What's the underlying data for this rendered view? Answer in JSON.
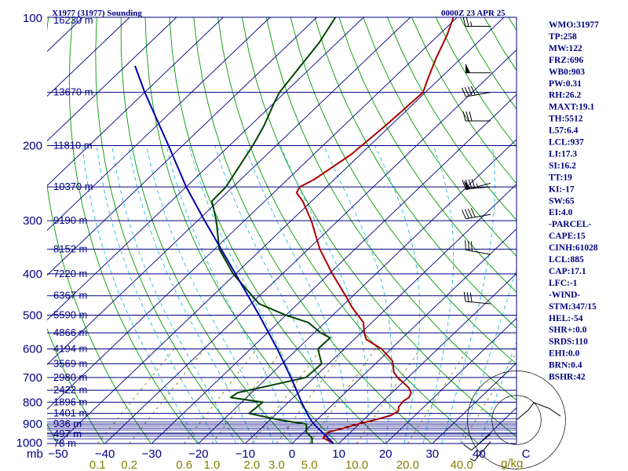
{
  "header": {
    "station": "X1977 (31977) Sounding",
    "valid_time": "0000Z 23 APR 25"
  },
  "indices": [
    "WMO:31977",
    "TP:258",
    "MW:122",
    "FRZ:696",
    "WB0:903",
    "PW:0.31",
    "RH:26.2",
    "MAXT:19.1",
    "TH:5512",
    "L57:6.4",
    "LCL:937",
    "LI:17.3",
    "SI:16.2",
    "TT:19",
    "KI:-17",
    "SW:65",
    "EI:4.0",
    "-PARCEL-",
    "CAPE:15",
    "CINH:61028",
    "LCL:885",
    "CAP:17.1",
    "LFC:-1",
    "-WIND-",
    "STM:347/15",
    "HEL:-54",
    "SHR+:0.0",
    "SRDS:110",
    "EHI:0.0",
    "BRN:0.4",
    "BSHR:42"
  ],
  "colors": {
    "frame": "#000080",
    "isobar": "#000080",
    "isotherm": "#000080",
    "dry_adiabat": "#009900",
    "moist_adiabat": "#22bbdd",
    "mixing_ratio": "#808000",
    "temperature": "#aa0000",
    "dewpoint": "#004400",
    "parcel": "#0000aa",
    "barbs": "#000000"
  },
  "chart_data": {
    "type": "skew-t",
    "xlabel": "",
    "ylabel": "mb",
    "pressure_unit": "mb",
    "mixing_ratio_unit": "g/kg",
    "plim": [
      1000,
      100
    ],
    "tlim": [
      -50,
      50
    ],
    "skew_deg_per_100mb": 9.3,
    "pressure_levels": [
      {
        "p": 100,
        "label": "100",
        "height": "16230 m"
      },
      {
        "p": 150,
        "label": "",
        "height": "13670 m"
      },
      {
        "p": 200,
        "label": "200",
        "height": "11810 m"
      },
      {
        "p": 250,
        "label": "",
        "height": "10370 m"
      },
      {
        "p": 300,
        "label": "300",
        "height": "9190 m"
      },
      {
        "p": 350,
        "label": "",
        "height": "8152 m"
      },
      {
        "p": 400,
        "label": "400",
        "height": "7220 m"
      },
      {
        "p": 450,
        "label": "",
        "height": "6367 m"
      },
      {
        "p": 500,
        "label": "500",
        "height": "5590 m"
      },
      {
        "p": 550,
        "label": "",
        "height": "4866 m"
      },
      {
        "p": 600,
        "label": "600",
        "height": "4194 m"
      },
      {
        "p": 650,
        "label": "",
        "height": "3569 m"
      },
      {
        "p": 700,
        "label": "700",
        "height": "2980 m"
      },
      {
        "p": 750,
        "label": "",
        "height": "2422 m"
      },
      {
        "p": 800,
        "label": "800",
        "height": "1896 m"
      },
      {
        "p": 850,
        "label": "",
        "height": "1401 m"
      },
      {
        "p": 900,
        "label": "900",
        "height": "936 m"
      },
      {
        "p": 950,
        "label": "",
        "height": "497 m"
      },
      {
        "p": 1000,
        "label": "1000",
        "height": "78 m"
      }
    ],
    "temp_ticks": [
      {
        "t": -50,
        "label": "−50"
      },
      {
        "t": -40,
        "label": "−40"
      },
      {
        "t": -30,
        "label": "−30"
      },
      {
        "t": -20,
        "label": "−20"
      },
      {
        "t": -10,
        "label": "−10"
      },
      {
        "t": 0,
        "label": "0"
      },
      {
        "t": 10,
        "label": "10"
      },
      {
        "t": 20,
        "label": "20"
      },
      {
        "t": 30,
        "label": "30"
      },
      {
        "t": 40,
        "label": "40"
      },
      {
        "t": 50,
        "label": "C"
      }
    ],
    "mixing_ratio_ticks": [
      {
        "w": 0.1,
        "label": "0.1"
      },
      {
        "w": 0.2,
        "label": "0.2"
      },
      {
        "w": 0.6,
        "label": "0.6"
      },
      {
        "w": 1.0,
        "label": "1.0"
      },
      {
        "w": 2.0,
        "label": "2.0"
      },
      {
        "w": 3.0,
        "label": "3.0"
      },
      {
        "w": 5.0,
        "label": "5.0"
      },
      {
        "w": 10.0,
        "label": "10.0"
      },
      {
        "w": 20.0,
        "label": "20.0"
      },
      {
        "w": 40.0,
        "label": "40.0"
      }
    ],
    "series": [
      {
        "name": "Temperature",
        "points": [
          {
            "p": 1000,
            "t": 8.9
          },
          {
            "p": 990,
            "t": 7.8
          },
          {
            "p": 980,
            "t": 6.6
          },
          {
            "p": 970,
            "t": 5.4
          },
          {
            "p": 955,
            "t": 5.5
          },
          {
            "p": 940,
            "t": 5.2
          },
          {
            "p": 920,
            "t": 7.6
          },
          {
            "p": 905,
            "t": 9.1
          },
          {
            "p": 880,
            "t": 12.4
          },
          {
            "p": 860,
            "t": 14.8
          },
          {
            "p": 840,
            "t": 15.5
          },
          {
            "p": 820,
            "t": 14.6
          },
          {
            "p": 795,
            "t": 14.3
          },
          {
            "p": 780,
            "t": 14.7
          },
          {
            "p": 760,
            "t": 14.1
          },
          {
            "p": 740,
            "t": 12.5
          },
          {
            "p": 720,
            "t": 10.2
          },
          {
            "p": 700,
            "t": 7.8
          },
          {
            "p": 680,
            "t": 5.8
          },
          {
            "p": 640,
            "t": 3.0
          },
          {
            "p": 600,
            "t": -2.0
          },
          {
            "p": 570,
            "t": -7.4
          },
          {
            "p": 550,
            "t": -9.3
          },
          {
            "p": 520,
            "t": -11.8
          },
          {
            "p": 480,
            "t": -17.5
          },
          {
            "p": 450,
            "t": -21.6
          },
          {
            "p": 400,
            "t": -29.3
          },
          {
            "p": 350,
            "t": -37.5
          },
          {
            "p": 300,
            "t": -45.7
          },
          {
            "p": 270,
            "t": -51.9
          },
          {
            "p": 258,
            "t": -55.1
          },
          {
            "p": 250,
            "t": -55.7
          },
          {
            "p": 240,
            "t": -54.3
          },
          {
            "p": 210,
            "t": -52.0
          },
          {
            "p": 180,
            "t": -51.1
          },
          {
            "p": 150,
            "t": -50.5
          },
          {
            "p": 140,
            "t": -52.4
          },
          {
            "p": 125,
            "t": -55.3
          },
          {
            "p": 110,
            "t": -58.2
          },
          {
            "p": 100,
            "t": -60.8
          }
        ]
      },
      {
        "name": "Dewpoint",
        "points": [
          {
            "p": 1000,
            "t": 4.3
          },
          {
            "p": 970,
            "t": 3.0
          },
          {
            "p": 940,
            "t": 0.5
          },
          {
            "p": 900,
            "t": -1.3
          },
          {
            "p": 880,
            "t": -8.0
          },
          {
            "p": 850,
            "t": -15.9
          },
          {
            "p": 800,
            "t": -15.5
          },
          {
            "p": 780,
            "t": -23.4
          },
          {
            "p": 760,
            "t": -23.0
          },
          {
            "p": 700,
            "t": -11.8
          },
          {
            "p": 650,
            "t": -11.5
          },
          {
            "p": 600,
            "t": -15.6
          },
          {
            "p": 565,
            "t": -15.5
          },
          {
            "p": 550,
            "t": -18.6
          },
          {
            "p": 520,
            "t": -23.6
          },
          {
            "p": 500,
            "t": -30.0
          },
          {
            "p": 470,
            "t": -38.3
          },
          {
            "p": 400,
            "t": -50.5
          },
          {
            "p": 350,
            "t": -59.0
          },
          {
            "p": 300,
            "t": -66.0
          },
          {
            "p": 270,
            "t": -71.3
          },
          {
            "p": 250,
            "t": -71.5
          },
          {
            "p": 200,
            "t": -75.0
          },
          {
            "p": 180,
            "t": -77.0
          },
          {
            "p": 160,
            "t": -79.8
          },
          {
            "p": 150,
            "t": -81.2
          },
          {
            "p": 130,
            "t": -82.6
          },
          {
            "p": 115,
            "t": -83.8
          },
          {
            "p": 100,
            "t": -86.0
          }
        ]
      },
      {
        "name": "Parcel",
        "points": [
          {
            "p": 1000,
            "t": 8.9
          },
          {
            "p": 950,
            "t": 4.7
          },
          {
            "p": 900,
            "t": 0.3
          },
          {
            "p": 885,
            "t": -0.9
          },
          {
            "p": 850,
            "t": -3.5
          },
          {
            "p": 800,
            "t": -7.2
          },
          {
            "p": 700,
            "t": -15.0
          },
          {
            "p": 600,
            "t": -24.3
          },
          {
            "p": 500,
            "t": -35.7
          },
          {
            "p": 400,
            "t": -50.0
          },
          {
            "p": 300,
            "t": -68.5
          },
          {
            "p": 250,
            "t": -80.0
          },
          {
            "p": 200,
            "t": -93.0
          },
          {
            "p": 150,
            "t": -110.0
          },
          {
            "p": 130,
            "t": -118.0
          }
        ]
      }
    ],
    "wind_barbs": [
      {
        "p": 105,
        "dir": 270,
        "kt": 25
      },
      {
        "p": 135,
        "dir": 270,
        "kt": 50
      },
      {
        "p": 150,
        "dir": 260,
        "kt": 40
      },
      {
        "p": 175,
        "dir": 270,
        "kt": 30
      },
      {
        "p": 245,
        "dir": 255,
        "kt": 50
      },
      {
        "p": 250,
        "dir": 265,
        "kt": 45
      },
      {
        "p": 290,
        "dir": 260,
        "kt": 40
      },
      {
        "p": 360,
        "dir": 280,
        "kt": 30
      },
      {
        "p": 470,
        "dir": 275,
        "kt": 30
      },
      {
        "p": 950,
        "dir": 230,
        "kt": 10
      },
      {
        "p": 990,
        "dir": 220,
        "kt": 5
      }
    ],
    "hodograph": [
      {
        "dir": 240,
        "kt": 0
      },
      {
        "dir": 230,
        "kt": 6
      },
      {
        "dir": 225,
        "kt": 10
      },
      {
        "dir": 250,
        "kt": 14
      },
      {
        "dir": 265,
        "kt": 18
      }
    ]
  }
}
